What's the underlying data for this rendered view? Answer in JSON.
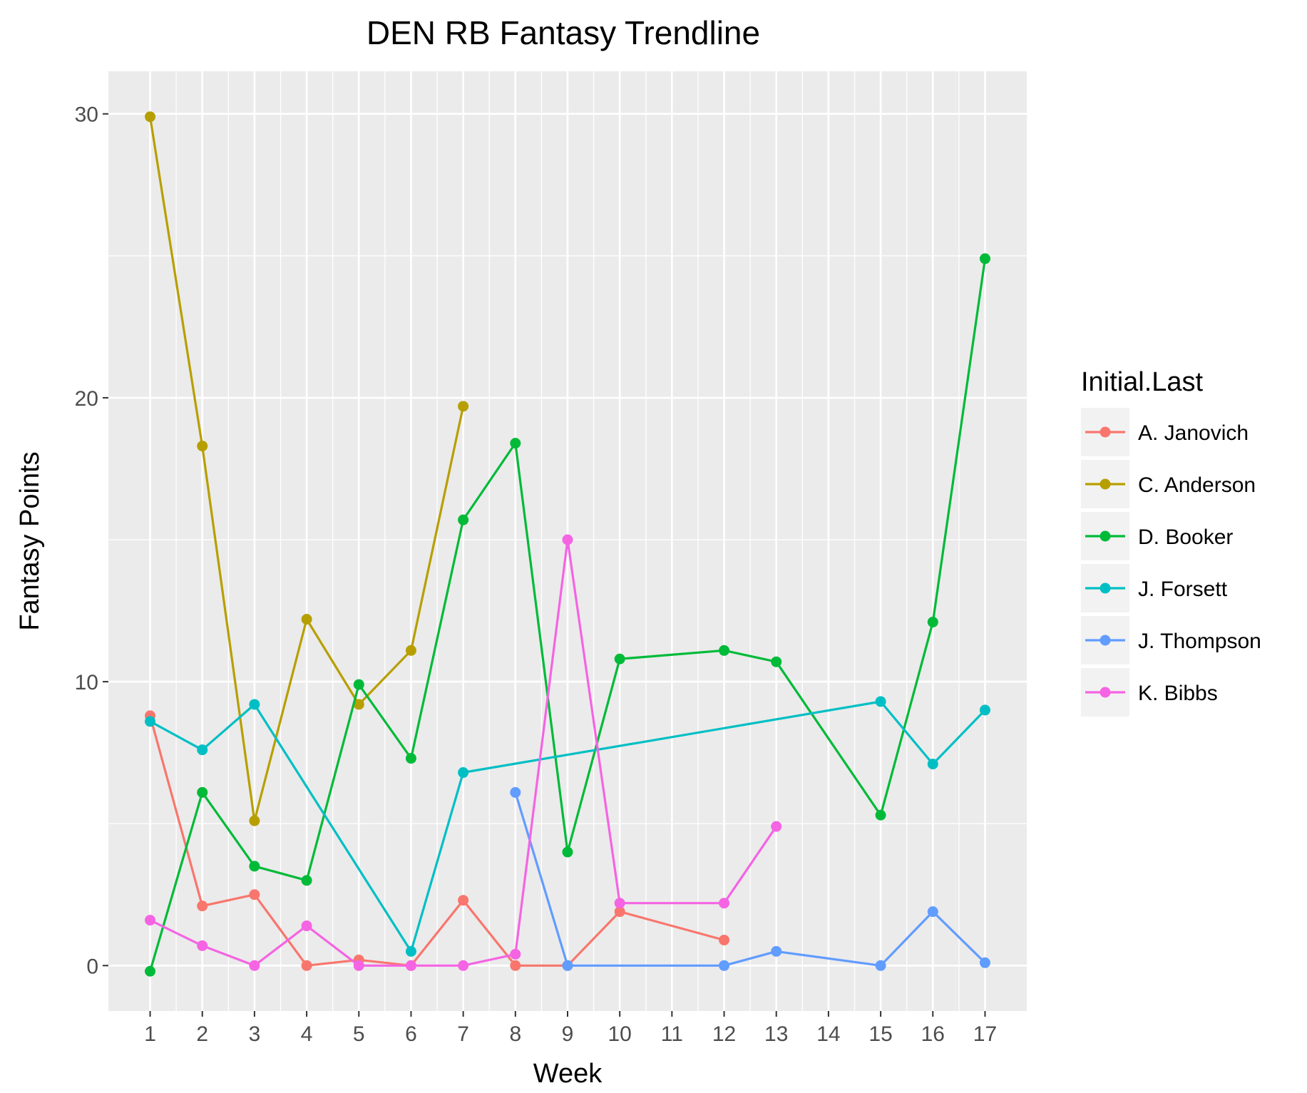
{
  "chart_data": {
    "type": "line",
    "title": "DEN RB Fantasy Trendline",
    "xlabel": "Week",
    "ylabel": "Fantasy Points",
    "x_ticks": [
      "1",
      "2",
      "3",
      "4",
      "5",
      "6",
      "7",
      "8",
      "9",
      "10",
      "11",
      "12",
      "13",
      "14",
      "15",
      "16",
      "17"
    ],
    "y_ticks": [
      0,
      10,
      20,
      30
    ],
    "xlim": [
      0.2,
      17.8
    ],
    "ylim": [
      -1.6,
      31.5
    ],
    "grid": true,
    "legend": {
      "title": "Initial.Last",
      "position": "right"
    },
    "series": [
      {
        "name": "A. Janovich",
        "color": "#F8766D",
        "points": [
          [
            1,
            8.8
          ],
          [
            2,
            2.1
          ],
          [
            3,
            2.5
          ],
          [
            4,
            0
          ],
          [
            5,
            0.2
          ],
          [
            6,
            0
          ],
          [
            7,
            2.3
          ],
          [
            8,
            0
          ],
          [
            9,
            0
          ],
          [
            10,
            1.9
          ],
          [
            12,
            0.9
          ]
        ]
      },
      {
        "name": "C. Anderson",
        "color": "#B79F00",
        "points": [
          [
            1,
            29.9
          ],
          [
            2,
            18.3
          ],
          [
            3,
            5.1
          ],
          [
            4,
            12.2
          ],
          [
            5,
            9.2
          ],
          [
            6,
            11.1
          ],
          [
            7,
            19.7
          ]
        ]
      },
      {
        "name": "D. Booker",
        "color": "#00BA38",
        "points": [
          [
            1,
            -0.2
          ],
          [
            2,
            6.1
          ],
          [
            3,
            3.5
          ],
          [
            4,
            3.0
          ],
          [
            5,
            9.9
          ],
          [
            6,
            7.3
          ],
          [
            7,
            15.7
          ],
          [
            8,
            18.4
          ],
          [
            9,
            4.0
          ],
          [
            10,
            10.8
          ],
          [
            12,
            11.1
          ],
          [
            13,
            10.7
          ],
          [
            15,
            5.3
          ],
          [
            16,
            12.1
          ],
          [
            17,
            24.9
          ]
        ]
      },
      {
        "name": "J. Forsett",
        "color": "#00BFC4",
        "points": [
          [
            1,
            8.6
          ],
          [
            2,
            7.6
          ],
          [
            3,
            9.2
          ],
          [
            6,
            0.5
          ],
          [
            7,
            6.8
          ],
          [
            15,
            9.3
          ],
          [
            16,
            7.1
          ],
          [
            17,
            9.0
          ]
        ]
      },
      {
        "name": "J. Thompson",
        "color": "#619CFF",
        "points": [
          [
            8,
            6.1
          ],
          [
            9,
            0
          ],
          [
            12,
            0
          ],
          [
            13,
            0.5
          ],
          [
            15,
            0
          ],
          [
            16,
            1.9
          ],
          [
            17,
            0.1
          ]
        ]
      },
      {
        "name": "K. Bibbs",
        "color": "#F564E3",
        "points": [
          [
            1,
            1.6
          ],
          [
            2,
            0.7
          ],
          [
            3,
            0
          ],
          [
            4,
            1.4
          ],
          [
            5,
            0
          ],
          [
            6,
            0
          ],
          [
            7,
            0
          ],
          [
            8,
            0.4
          ],
          [
            9,
            15.0
          ],
          [
            10,
            2.2
          ],
          [
            12,
            2.2
          ],
          [
            13,
            4.9
          ]
        ]
      }
    ]
  }
}
